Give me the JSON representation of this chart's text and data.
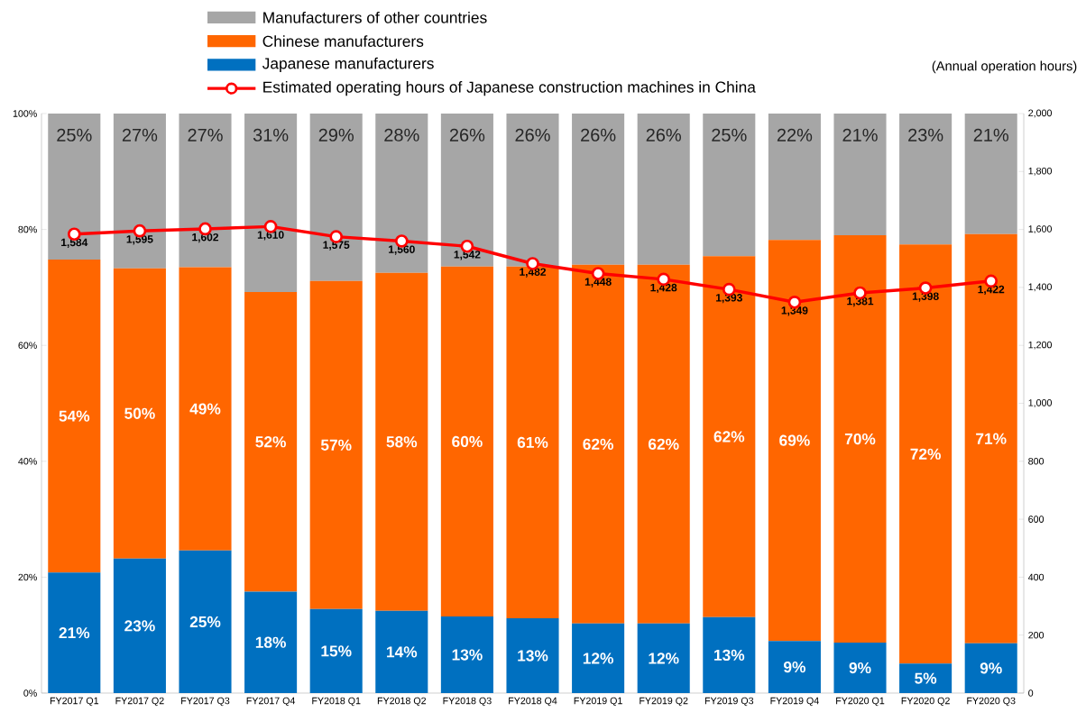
{
  "chart_data": {
    "type": "bar",
    "stacked": true,
    "legend": "top",
    "y2label": "(Annual operation hours)",
    "categories": [
      "FY2017 Q1",
      "FY2017 Q2",
      "FY2017 Q3",
      "FY2017 Q4",
      "FY2018 Q1",
      "FY2018 Q2",
      "FY2018 Q3",
      "FY2018 Q4",
      "FY2019 Q1",
      "FY2019 Q2",
      "FY2019 Q3",
      "FY2019 Q4",
      "FY2020 Q1",
      "FY2020 Q2",
      "FY2020 Q3"
    ],
    "ylim": [
      0,
      100
    ],
    "yticks": [
      {
        "value": 0,
        "label": "0%"
      },
      {
        "value": 20,
        "label": "20%"
      },
      {
        "value": 40,
        "label": "40%"
      },
      {
        "value": 60,
        "label": "60%"
      },
      {
        "value": 80,
        "label": "80%"
      },
      {
        "value": 100,
        "label": "100%"
      }
    ],
    "y2lim": [
      0,
      2000
    ],
    "y2ticks": [
      0,
      200,
      400,
      600,
      800,
      {
        "value": 1000,
        "label": "1,000"
      },
      {
        "value": 1200,
        "label": "1,200"
      },
      {
        "value": 1400,
        "label": "1,400"
      },
      {
        "value": 1600,
        "label": "1,600"
      },
      {
        "value": 1800,
        "label": "1,800"
      },
      {
        "value": 2000,
        "label": "2,000"
      }
    ],
    "series": [
      {
        "name": "Japanese manufacturers",
        "color": "#0070c0",
        "values": [
          20.8,
          23.2,
          24.6,
          17.5,
          14.5,
          14.2,
          13.2,
          12.9,
          12.0,
          12.0,
          13.1,
          9.0,
          8.7,
          5.1,
          8.6
        ],
        "value_labels": [
          "21%",
          "23%",
          "25%",
          "18%",
          "15%",
          "14%",
          "13%",
          "13%",
          "12%",
          "12%",
          "13%",
          "9%",
          "9%",
          "5%",
          "9%"
        ]
      },
      {
        "name": "Chinese manufacturers",
        "color": "#ff6600",
        "values": [
          54.0,
          50.1,
          48.9,
          51.7,
          56.6,
          58.3,
          60.4,
          60.7,
          61.9,
          61.9,
          62.3,
          69.2,
          70.3,
          72.3,
          70.6
        ],
        "value_labels": [
          "54%",
          "50%",
          "49%",
          "52%",
          "57%",
          "58%",
          "60%",
          "61%",
          "62%",
          "62%",
          "62%",
          "69%",
          "70%",
          "72%",
          "71%"
        ]
      },
      {
        "name": "Manufacturers of other countries",
        "color": "#a6a6a6",
        "values": [
          25.2,
          26.7,
          26.5,
          30.8,
          28.9,
          27.5,
          26.4,
          26.4,
          26.1,
          26.1,
          24.6,
          21.8,
          21.0,
          22.6,
          20.8
        ],
        "value_labels": [
          "25%",
          "27%",
          "27%",
          "31%",
          "29%",
          "28%",
          "26%",
          "26%",
          "26%",
          "26%",
          "25%",
          "22%",
          "21%",
          "23%",
          "21%"
        ]
      },
      {
        "name": "Estimated operating hours of Japanese construction machines in China",
        "type": "line",
        "axis": "y2",
        "color": "#ff0000",
        "marker": "circle",
        "values": [
          1584,
          1595,
          1602,
          1610,
          1575,
          1560,
          1542,
          1482,
          1448,
          1428,
          1393,
          1349,
          1381,
          1398,
          1422
        ],
        "value_labels": [
          "1,584",
          "1,595",
          "1,602",
          "1,610",
          "1,575",
          "1,560",
          "1,542",
          "1,482",
          "1,448",
          "1,428",
          "1,393",
          "1,349",
          "1,381",
          "1,398",
          "1,422"
        ]
      }
    ]
  }
}
